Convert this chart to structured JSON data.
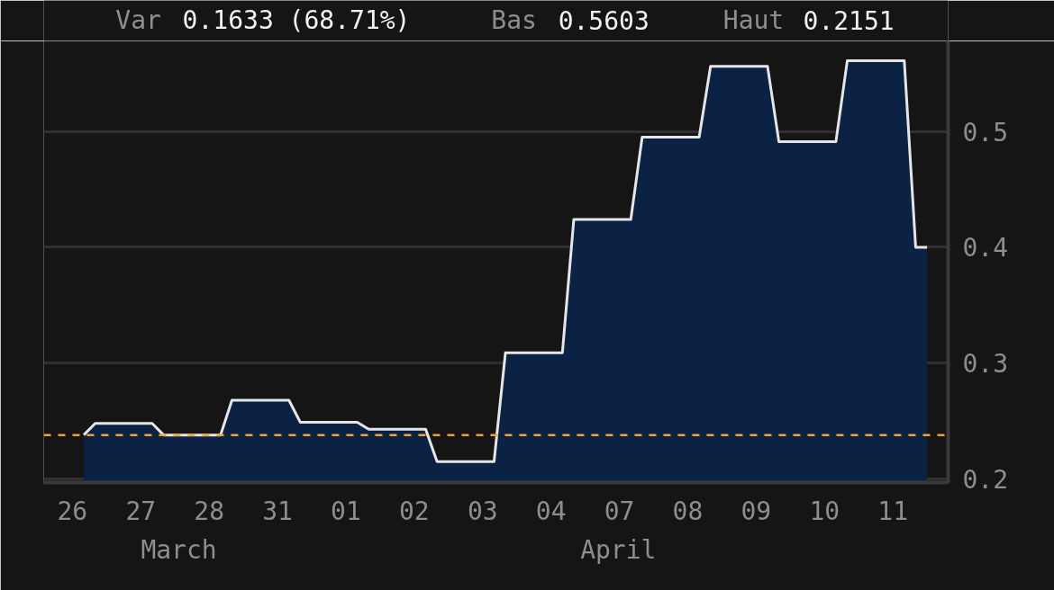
{
  "chart_data": {
    "type": "area",
    "categories": [
      "26",
      null,
      null,
      null,
      null,
      null,
      "27",
      null,
      null,
      null,
      null,
      null,
      "28",
      null,
      null,
      null,
      null,
      null,
      "31",
      null,
      null,
      null,
      null,
      null,
      "01",
      null,
      null,
      null,
      null,
      null,
      "02",
      null,
      null,
      null,
      null,
      null,
      "03",
      null,
      null,
      null,
      null,
      null,
      "04",
      null,
      null,
      null,
      null,
      null,
      "07",
      null,
      null,
      null,
      null,
      null,
      "08",
      null,
      null,
      null,
      null,
      null,
      "09",
      null,
      null,
      null,
      null,
      null,
      "10",
      null,
      null,
      null,
      null,
      null,
      "11",
      null,
      null,
      null
    ],
    "series": [
      {
        "color": "#0b2244",
        "values": [
          null,
          0.238,
          0.248,
          0.248,
          0.248,
          0.248,
          0.248,
          0.248,
          0.238,
          0.238,
          0.238,
          0.238,
          0.238,
          0.238,
          0.268,
          0.268,
          0.268,
          0.268,
          0.268,
          0.268,
          0.249,
          0.249,
          0.249,
          0.249,
          0.249,
          0.249,
          0.243,
          0.243,
          0.243,
          0.243,
          0.243,
          0.243,
          0.215,
          0.215,
          0.215,
          0.215,
          0.215,
          0.215,
          0.309,
          0.309,
          0.309,
          0.309,
          0.309,
          0.309,
          0.424,
          0.424,
          0.424,
          0.424,
          0.424,
          0.424,
          0.495,
          0.495,
          0.495,
          0.495,
          0.495,
          0.495,
          0.556,
          0.556,
          0.556,
          0.556,
          0.556,
          0.556,
          0.491,
          0.491,
          0.491,
          0.491,
          0.491,
          0.491,
          0.561,
          0.561,
          0.561,
          0.561,
          0.561,
          0.561,
          0.4,
          0.4
        ]
      }
    ],
    "ylim": [
      0.197,
      0.578
    ],
    "yticks": [
      0.2,
      0.3,
      0.4,
      0.5
    ],
    "ref_lines": [
      {
        "axis": "y",
        "value": 0.238,
        "color": "#f5a030",
        "line_style": "dashed"
      }
    ],
    "grid": "y",
    "annotations": [
      "Var",
      "0.1633 (68.71%)",
      "Bas",
      "0.5603",
      "Haut",
      "0.2151",
      "March",
      "April"
    ]
  }
}
